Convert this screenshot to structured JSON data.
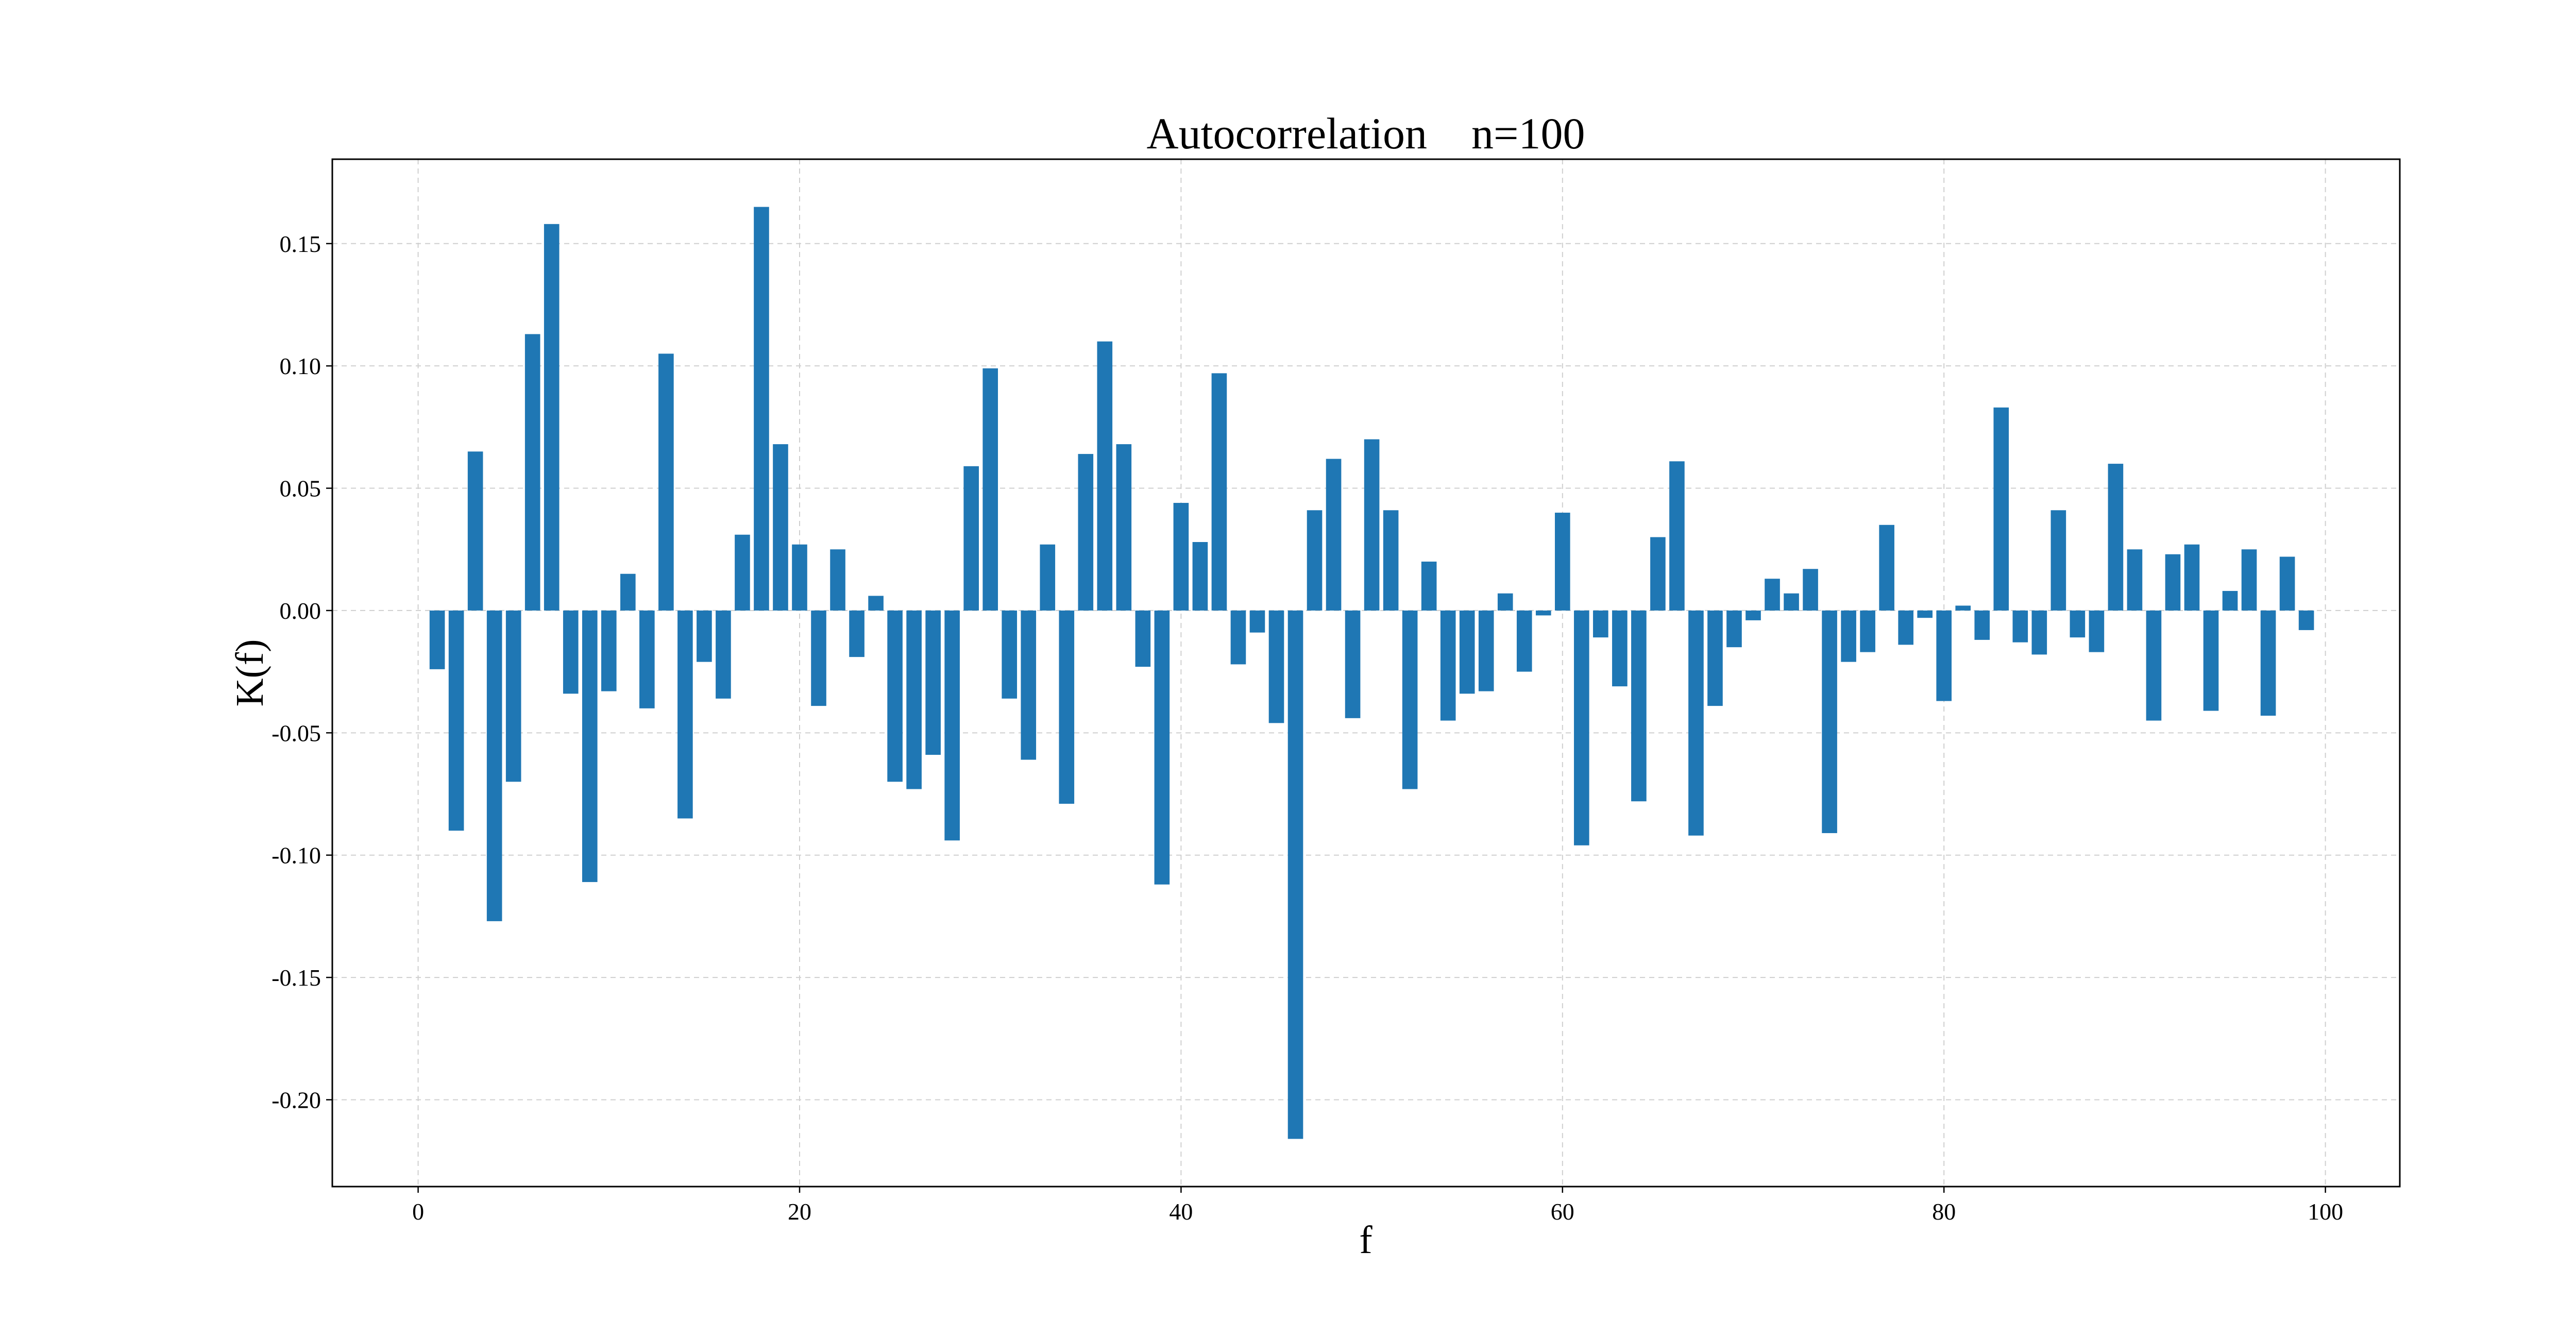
{
  "chart_data": {
    "type": "bar",
    "title": "Autocorrelation    n=100",
    "xlabel": "f",
    "ylabel": "K(f)",
    "xlim": [
      -4.5,
      103.9
    ],
    "ylim": [
      -0.2355,
      0.1845
    ],
    "xticks": [
      0,
      20,
      40,
      60,
      80,
      100
    ],
    "xtick_labels": [
      "0",
      "20",
      "40",
      "60",
      "80",
      "100"
    ],
    "yticks": [
      -0.2,
      -0.15,
      -0.1,
      -0.05,
      0.0,
      0.05,
      0.1,
      0.15
    ],
    "ytick_labels": [
      "-0.20",
      "-0.15",
      "-0.10",
      "-0.05",
      "0.00",
      "0.05",
      "0.10",
      "0.15"
    ],
    "grid": true,
    "bar_color": "#1f77b4",
    "x": [
      1,
      2,
      3,
      4,
      5,
      6,
      7,
      8,
      9,
      10,
      11,
      12,
      13,
      14,
      15,
      16,
      17,
      18,
      19,
      20,
      21,
      22,
      23,
      24,
      25,
      26,
      27,
      28,
      29,
      30,
      31,
      32,
      33,
      34,
      35,
      36,
      37,
      38,
      39,
      40,
      41,
      42,
      43,
      44,
      45,
      46,
      47,
      48,
      49,
      50,
      51,
      52,
      53,
      54,
      55,
      56,
      57,
      58,
      59,
      60,
      61,
      62,
      63,
      64,
      65,
      66,
      67,
      68,
      69,
      70,
      71,
      72,
      73,
      74,
      75,
      76,
      77,
      78,
      79,
      80,
      81,
      82,
      83,
      84,
      85,
      86,
      87,
      88,
      89,
      90,
      91,
      92,
      93,
      94,
      95,
      96,
      97,
      98,
      99
    ],
    "values": [
      -0.024,
      -0.09,
      0.065,
      -0.127,
      -0.07,
      0.113,
      0.158,
      -0.034,
      -0.111,
      -0.033,
      0.015,
      -0.04,
      0.105,
      -0.085,
      -0.021,
      -0.036,
      0.031,
      0.165,
      0.068,
      0.027,
      -0.039,
      0.025,
      -0.019,
      0.006,
      -0.07,
      -0.073,
      -0.059,
      -0.094,
      0.059,
      0.099,
      -0.036,
      -0.061,
      0.027,
      -0.079,
      0.064,
      0.11,
      0.068,
      -0.023,
      -0.112,
      0.044,
      0.028,
      0.097,
      -0.022,
      -0.009,
      -0.046,
      -0.216,
      0.041,
      0.062,
      -0.044,
      0.07,
      0.041,
      -0.073,
      0.02,
      -0.045,
      -0.034,
      -0.033,
      0.007,
      -0.025,
      -0.002,
      0.04,
      -0.096,
      -0.011,
      -0.031,
      -0.078,
      0.03,
      0.061,
      -0.092,
      -0.039,
      -0.015,
      -0.004,
      0.013,
      0.007,
      0.017,
      -0.091,
      -0.021,
      -0.017,
      0.035,
      -0.014,
      -0.003,
      -0.037,
      0.002,
      -0.012,
      0.083,
      -0.013,
      -0.018,
      0.041,
      -0.011,
      -0.017,
      0.06,
      0.025,
      -0.045,
      0.023,
      0.027,
      -0.041,
      0.008,
      0.025,
      -0.043,
      0.022,
      -0.008
    ]
  }
}
